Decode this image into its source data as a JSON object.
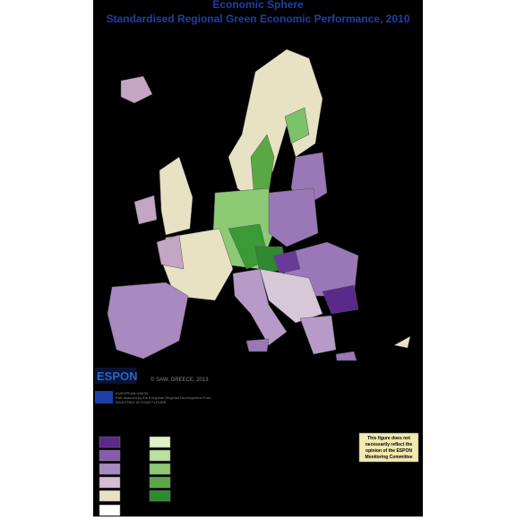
{
  "header": {
    "title": "Economic Sphere",
    "subtitle": "Standardised Regional Green Economic Performance, 2010"
  },
  "credits": {
    "copyright": "© SAW, GREECE, 2013"
  },
  "logo": {
    "name": "ESPON",
    "programme": "EUROPEAN UNION",
    "funding": "Part-financed by the European Regional Development Fund",
    "motto": "INVESTING IN YOUR FUTURE"
  },
  "disclaimer": {
    "lines": [
      "This figure does not",
      "necessarily reflect the",
      "opinion of the ESPON",
      "Monitoring Committee"
    ]
  }
}
